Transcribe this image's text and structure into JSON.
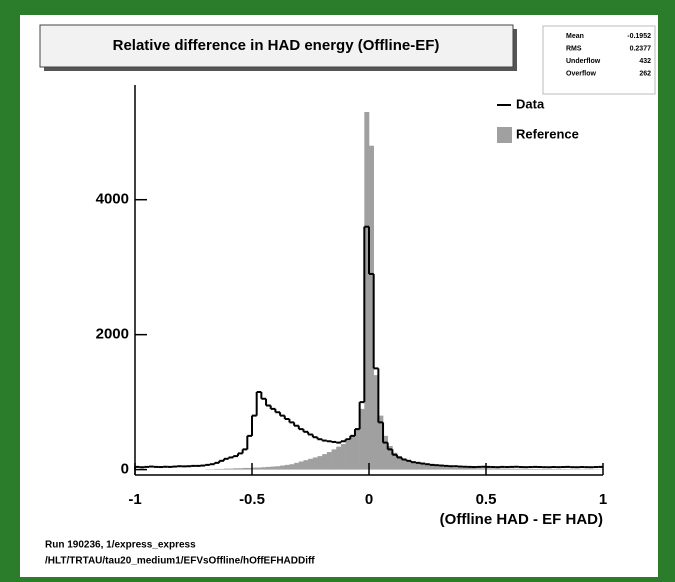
{
  "chart_data": {
    "type": "histogram",
    "title": "Relative difference in HAD energy (Offline-EF)",
    "x_label": "(Offline HAD - EF HAD)",
    "stats": [
      {
        "label": "Mean",
        "value": -0.1952
      },
      {
        "label": "RMS",
        "value": 0.2377
      },
      {
        "label": "Underflow",
        "value": 432
      },
      {
        "label": "Overflow",
        "value": 262
      }
    ],
    "bins": [
      -1,
      -0.98,
      -0.96,
      -0.94,
      -0.92,
      -0.9,
      -0.88,
      -0.86,
      -0.84,
      -0.82,
      -0.8,
      -0.78,
      -0.76,
      -0.74,
      -0.72,
      -0.7,
      -0.68,
      -0.66,
      -0.64,
      -0.62,
      -0.6,
      -0.58,
      -0.56,
      -0.54,
      -0.52,
      -0.5,
      -0.48,
      -0.46,
      -0.44,
      -0.42,
      -0.4,
      -0.38,
      -0.36,
      -0.34,
      -0.32,
      -0.3,
      -0.28,
      -0.26,
      -0.24,
      -0.22,
      -0.2,
      -0.18,
      -0.16,
      -0.14,
      -0.12,
      -0.1,
      -0.08,
      -0.06,
      -0.04,
      -0.02,
      0,
      0.02,
      0.04,
      0.06,
      0.08,
      0.1,
      0.12,
      0.14,
      0.16,
      0.18,
      0.2,
      0.22,
      0.24,
      0.26,
      0.28,
      0.3,
      0.32,
      0.34,
      0.36,
      0.38,
      0.4,
      0.42,
      0.44,
      0.46,
      0.48,
      0.5,
      0.52,
      0.54,
      0.56,
      0.58,
      0.6,
      0.62,
      0.64,
      0.66,
      0.68,
      0.7,
      0.72,
      0.74,
      0.76,
      0.78,
      0.8,
      0.82,
      0.84,
      0.86,
      0.88,
      0.9,
      0.92,
      0.94,
      0.96,
      0.98,
      1
    ],
    "series": [
      {
        "name": "Reference",
        "color": "#a0a0a0",
        "style": "fill",
        "values": [
          0,
          0,
          0,
          0,
          0,
          0,
          0,
          0,
          0,
          0,
          0,
          0,
          0,
          0,
          0,
          5,
          5,
          10,
          10,
          15,
          15,
          20,
          20,
          25,
          25,
          30,
          30,
          35,
          40,
          45,
          50,
          60,
          70,
          80,
          100,
          120,
          140,
          160,
          180,
          200,
          230,
          260,
          300,
          340,
          380,
          430,
          500,
          600,
          900,
          5300,
          4800,
          1400,
          800,
          500,
          350,
          250,
          200,
          160,
          130,
          110,
          90,
          80,
          70,
          60,
          50,
          45,
          40,
          35,
          30,
          28,
          25,
          24,
          22,
          20,
          19,
          18,
          17,
          16,
          15,
          14,
          13,
          12,
          12,
          11,
          10,
          10,
          9,
          9,
          8,
          8,
          7,
          7,
          6,
          6,
          6,
          5,
          5,
          5,
          4,
          4
        ]
      },
      {
        "name": "Data",
        "color": "#000000",
        "style": "line",
        "values": [
          40,
          35,
          40,
          45,
          40,
          38,
          42,
          40,
          45,
          50,
          48,
          50,
          55,
          55,
          60,
          70,
          80,
          100,
          130,
          160,
          180,
          200,
          240,
          300,
          500,
          800,
          1150,
          1050,
          950,
          900,
          850,
          800,
          750,
          700,
          650,
          600,
          560,
          520,
          480,
          450,
          430,
          420,
          410,
          400,
          420,
          450,
          500,
          600,
          1000,
          3600,
          2900,
          1500,
          700,
          400,
          300,
          220,
          180,
          150,
          130,
          110,
          100,
          90,
          80,
          70,
          65,
          60,
          55,
          50,
          50,
          45,
          42,
          40,
          38,
          40,
          42,
          40,
          38,
          36,
          40,
          38,
          40,
          42,
          38,
          36,
          38,
          40,
          38,
          36,
          35,
          38,
          36,
          38,
          40,
          36,
          35,
          38,
          36,
          35,
          38,
          40
        ]
      }
    ],
    "xlim": [
      -1,
      1
    ],
    "ylim": [
      -80,
      5700
    ],
    "xticks": [
      -1,
      -0.5,
      0,
      0.5,
      1
    ],
    "yticks": [
      0,
      2000,
      4000
    ]
  },
  "footer": [
    "Run 190236, 1/express_express",
    "/HLT/TRTAU/tau20_medium1/EFVsOffline/hOffEFHADDiff"
  ]
}
